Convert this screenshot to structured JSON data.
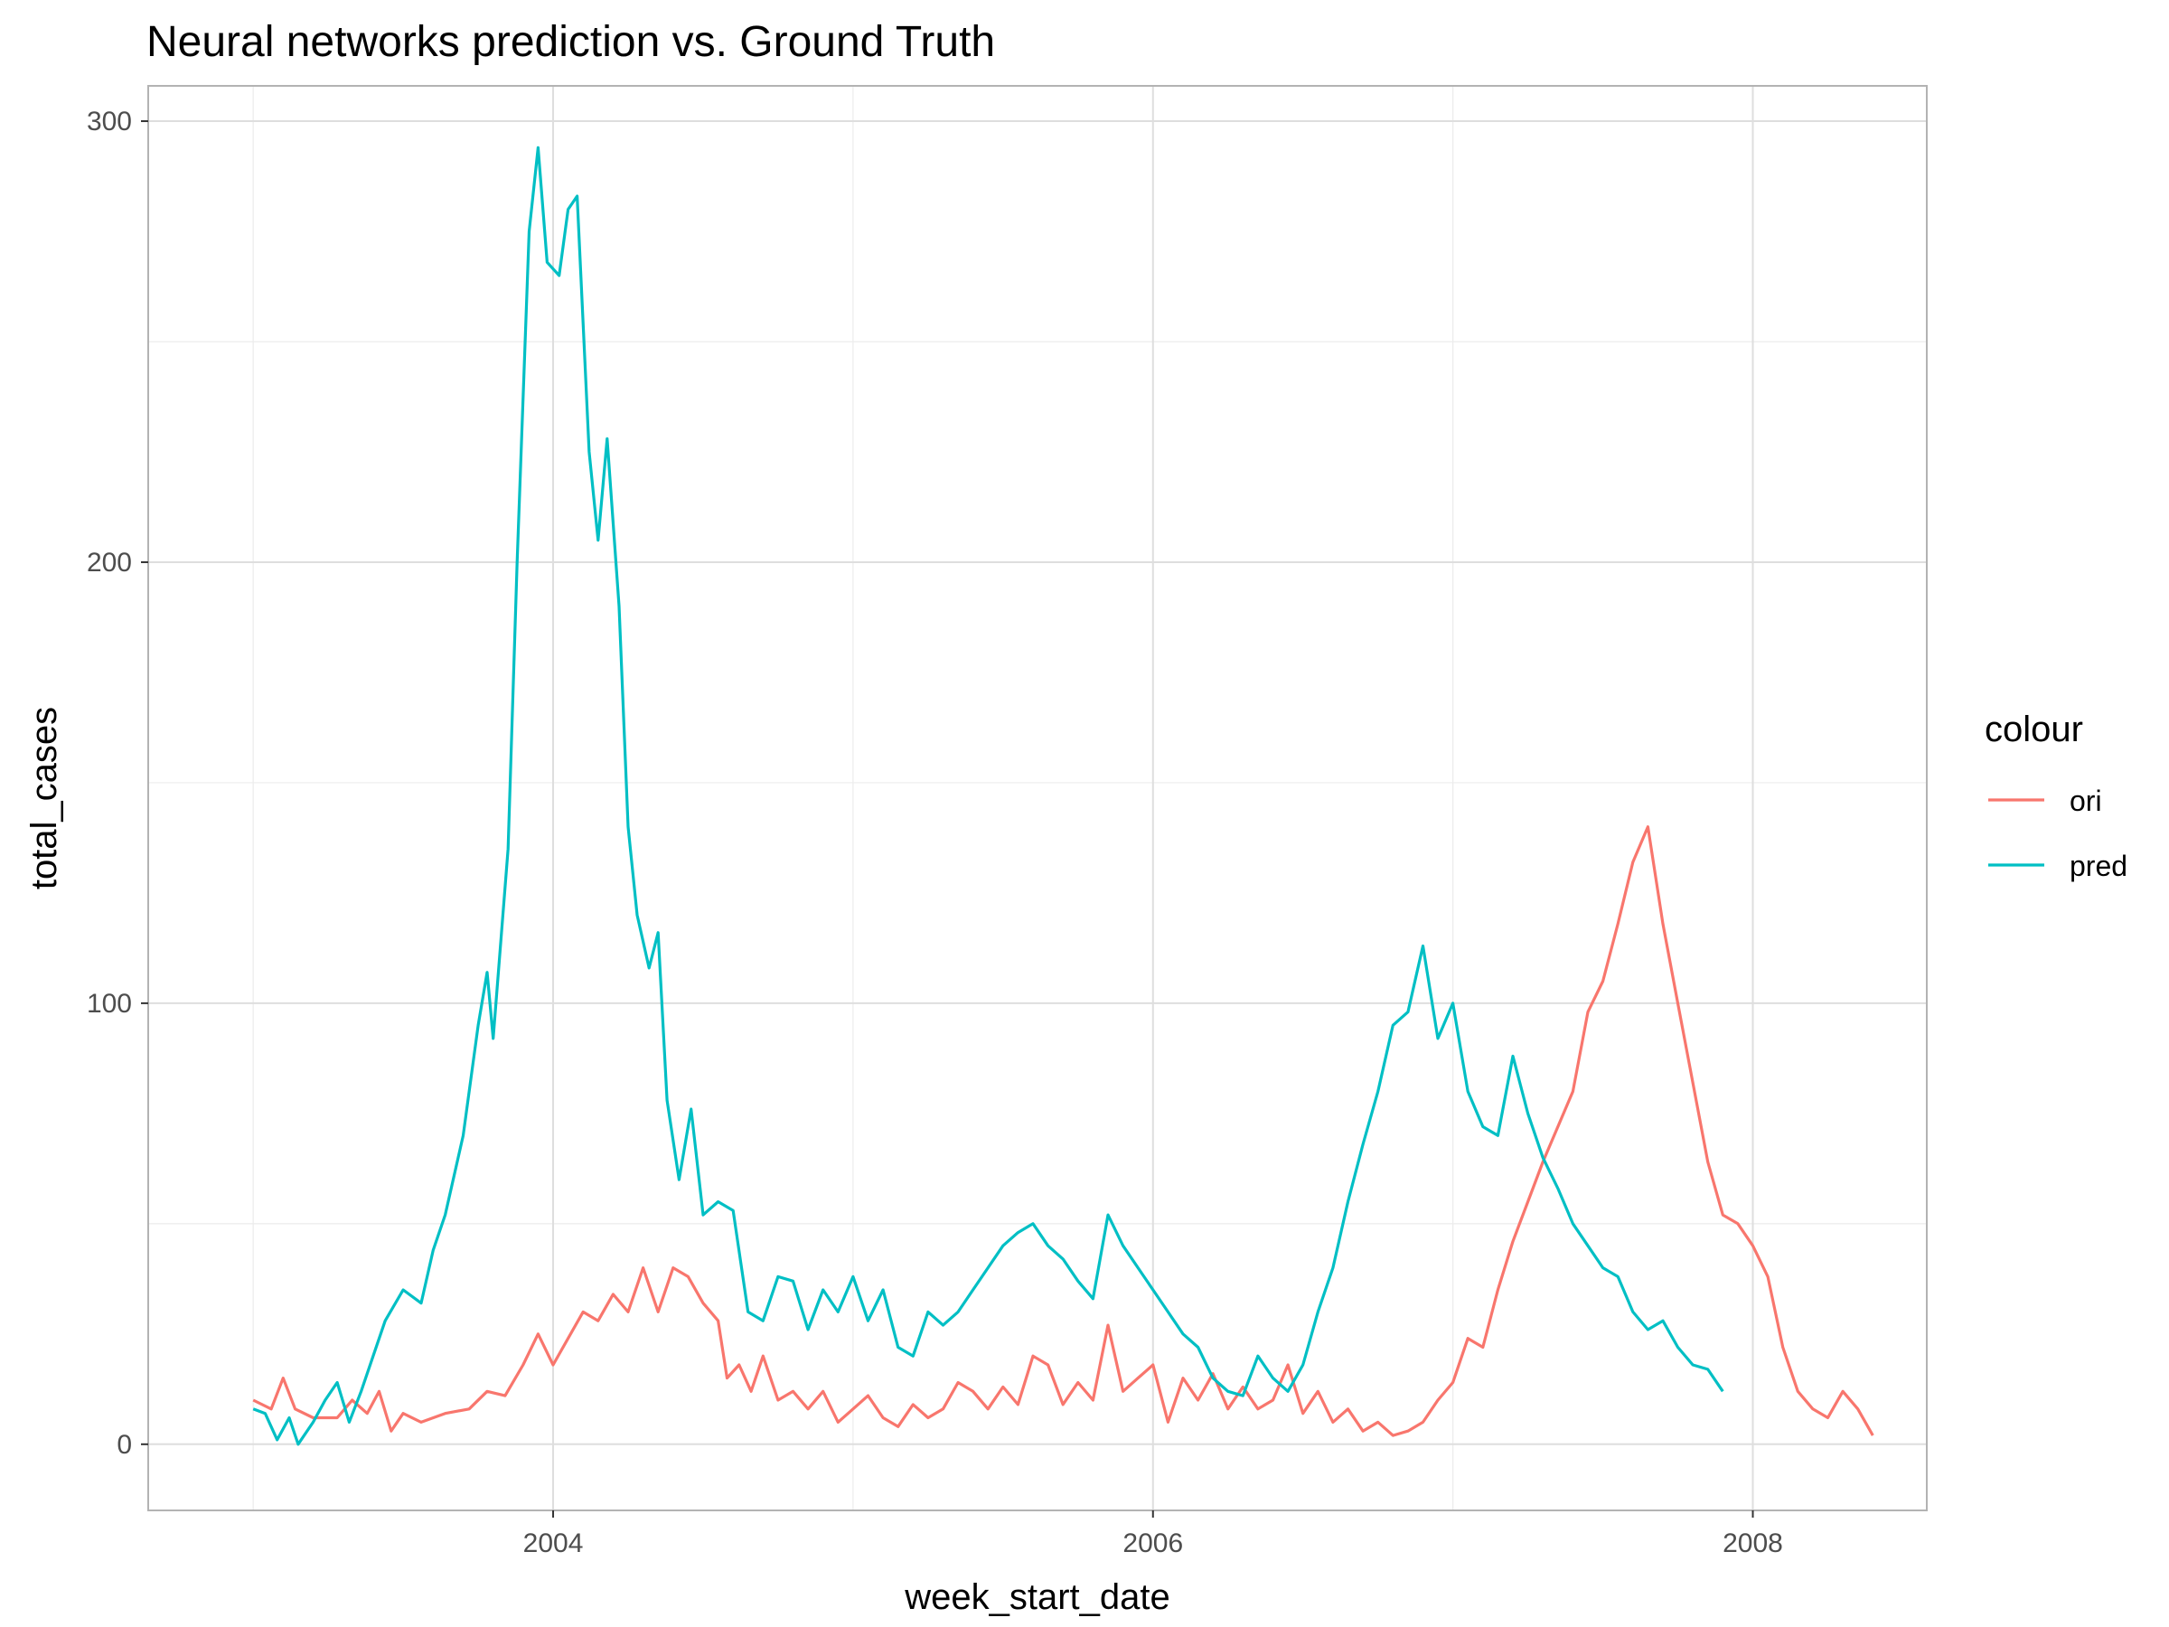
{
  "chart_data": {
    "type": "line",
    "title": "Neural networks prediction vs. Ground Truth",
    "xlabel": "week_start_date",
    "ylabel": "total_cases",
    "x_ticks": [
      "2004",
      "2006",
      "2008"
    ],
    "y_ticks": [
      "0",
      "100",
      "200",
      "300"
    ],
    "xlim": [
      2002.65,
      2008.58
    ],
    "ylim": [
      -15,
      308
    ],
    "grid": true,
    "legend": {
      "title": "colour",
      "position": "right"
    },
    "series": [
      {
        "name": "ori",
        "color": "#F8766D",
        "points": [
          [
            2003.0,
            10
          ],
          [
            2003.06,
            8
          ],
          [
            2003.1,
            15
          ],
          [
            2003.14,
            8
          ],
          [
            2003.2,
            6
          ],
          [
            2003.28,
            6
          ],
          [
            2003.33,
            10
          ],
          [
            2003.38,
            7
          ],
          [
            2003.42,
            12
          ],
          [
            2003.46,
            3
          ],
          [
            2003.5,
            7
          ],
          [
            2003.56,
            5
          ],
          [
            2003.64,
            7
          ],
          [
            2003.72,
            8
          ],
          [
            2003.78,
            12
          ],
          [
            2003.84,
            11
          ],
          [
            2003.9,
            18
          ],
          [
            2003.95,
            25
          ],
          [
            2004.0,
            18
          ],
          [
            2004.05,
            24
          ],
          [
            2004.1,
            30
          ],
          [
            2004.15,
            28
          ],
          [
            2004.2,
            34
          ],
          [
            2004.25,
            30
          ],
          [
            2004.3,
            40
          ],
          [
            2004.35,
            30
          ],
          [
            2004.4,
            40
          ],
          [
            2004.45,
            38
          ],
          [
            2004.5,
            32
          ],
          [
            2004.55,
            28
          ],
          [
            2004.58,
            15
          ],
          [
            2004.62,
            18
          ],
          [
            2004.66,
            12
          ],
          [
            2004.7,
            20
          ],
          [
            2004.75,
            10
          ],
          [
            2004.8,
            12
          ],
          [
            2004.85,
            8
          ],
          [
            2004.9,
            12
          ],
          [
            2004.95,
            5
          ],
          [
            2005.0,
            8
          ],
          [
            2005.05,
            11
          ],
          [
            2005.1,
            6
          ],
          [
            2005.15,
            4
          ],
          [
            2005.2,
            9
          ],
          [
            2005.25,
            6
          ],
          [
            2005.3,
            8
          ],
          [
            2005.35,
            14
          ],
          [
            2005.4,
            12
          ],
          [
            2005.45,
            8
          ],
          [
            2005.5,
            13
          ],
          [
            2005.55,
            9
          ],
          [
            2005.6,
            20
          ],
          [
            2005.65,
            18
          ],
          [
            2005.7,
            9
          ],
          [
            2005.75,
            14
          ],
          [
            2005.8,
            10
          ],
          [
            2005.85,
            27
          ],
          [
            2005.9,
            12
          ],
          [
            2005.95,
            15
          ],
          [
            2006.0,
            18
          ],
          [
            2006.05,
            5
          ],
          [
            2006.1,
            15
          ],
          [
            2006.15,
            10
          ],
          [
            2006.2,
            16
          ],
          [
            2006.25,
            8
          ],
          [
            2006.3,
            13
          ],
          [
            2006.35,
            8
          ],
          [
            2006.4,
            10
          ],
          [
            2006.45,
            18
          ],
          [
            2006.5,
            7
          ],
          [
            2006.55,
            12
          ],
          [
            2006.6,
            5
          ],
          [
            2006.65,
            8
          ],
          [
            2006.7,
            3
          ],
          [
            2006.75,
            5
          ],
          [
            2006.8,
            2
          ],
          [
            2006.85,
            3
          ],
          [
            2006.9,
            5
          ],
          [
            2006.95,
            10
          ],
          [
            2007.0,
            14
          ],
          [
            2007.05,
            24
          ],
          [
            2007.1,
            22
          ],
          [
            2007.15,
            35
          ],
          [
            2007.2,
            46
          ],
          [
            2007.25,
            55
          ],
          [
            2007.3,
            64
          ],
          [
            2007.35,
            72
          ],
          [
            2007.4,
            80
          ],
          [
            2007.45,
            98
          ],
          [
            2007.5,
            105
          ],
          [
            2007.55,
            118
          ],
          [
            2007.6,
            132
          ],
          [
            2007.65,
            140
          ],
          [
            2007.7,
            118
          ],
          [
            2007.75,
            100
          ],
          [
            2007.8,
            82
          ],
          [
            2007.85,
            64
          ],
          [
            2007.9,
            52
          ],
          [
            2007.95,
            50
          ],
          [
            2008.0,
            45
          ],
          [
            2008.05,
            38
          ],
          [
            2008.1,
            22
          ],
          [
            2008.15,
            12
          ],
          [
            2008.2,
            8
          ],
          [
            2008.25,
            6
          ],
          [
            2008.3,
            12
          ],
          [
            2008.35,
            8
          ],
          [
            2008.4,
            2
          ]
        ]
      },
      {
        "name": "pred",
        "color": "#00BFC4",
        "points": [
          [
            2003.0,
            8
          ],
          [
            2003.04,
            7
          ],
          [
            2003.08,
            1
          ],
          [
            2003.12,
            6
          ],
          [
            2003.15,
            0
          ],
          [
            2003.2,
            5
          ],
          [
            2003.24,
            10
          ],
          [
            2003.28,
            14
          ],
          [
            2003.32,
            5
          ],
          [
            2003.36,
            12
          ],
          [
            2003.4,
            20
          ],
          [
            2003.44,
            28
          ],
          [
            2003.5,
            35
          ],
          [
            2003.56,
            32
          ],
          [
            2003.6,
            44
          ],
          [
            2003.64,
            52
          ],
          [
            2003.7,
            70
          ],
          [
            2003.75,
            95
          ],
          [
            2003.78,
            107
          ],
          [
            2003.8,
            92
          ],
          [
            2003.85,
            135
          ],
          [
            2003.88,
            200
          ],
          [
            2003.92,
            275
          ],
          [
            2003.95,
            294
          ],
          [
            2003.98,
            268
          ],
          [
            2004.02,
            265
          ],
          [
            2004.05,
            280
          ],
          [
            2004.08,
            283
          ],
          [
            2004.12,
            225
          ],
          [
            2004.15,
            205
          ],
          [
            2004.18,
            228
          ],
          [
            2004.22,
            190
          ],
          [
            2004.25,
            140
          ],
          [
            2004.28,
            120
          ],
          [
            2004.32,
            108
          ],
          [
            2004.35,
            116
          ],
          [
            2004.38,
            78
          ],
          [
            2004.42,
            60
          ],
          [
            2004.46,
            76
          ],
          [
            2004.5,
            52
          ],
          [
            2004.55,
            55
          ],
          [
            2004.6,
            53
          ],
          [
            2004.65,
            30
          ],
          [
            2004.7,
            28
          ],
          [
            2004.75,
            38
          ],
          [
            2004.8,
            37
          ],
          [
            2004.85,
            26
          ],
          [
            2004.9,
            35
          ],
          [
            2004.95,
            30
          ],
          [
            2005.0,
            38
          ],
          [
            2005.05,
            28
          ],
          [
            2005.1,
            35
          ],
          [
            2005.15,
            22
          ],
          [
            2005.2,
            20
          ],
          [
            2005.25,
            30
          ],
          [
            2005.3,
            27
          ],
          [
            2005.35,
            30
          ],
          [
            2005.4,
            35
          ],
          [
            2005.45,
            40
          ],
          [
            2005.5,
            45
          ],
          [
            2005.55,
            48
          ],
          [
            2005.6,
            50
          ],
          [
            2005.65,
            45
          ],
          [
            2005.7,
            42
          ],
          [
            2005.75,
            37
          ],
          [
            2005.8,
            33
          ],
          [
            2005.85,
            52
          ],
          [
            2005.9,
            45
          ],
          [
            2005.95,
            40
          ],
          [
            2006.0,
            35
          ],
          [
            2006.05,
            30
          ],
          [
            2006.1,
            25
          ],
          [
            2006.15,
            22
          ],
          [
            2006.2,
            15
          ],
          [
            2006.25,
            12
          ],
          [
            2006.3,
            11
          ],
          [
            2006.35,
            20
          ],
          [
            2006.4,
            15
          ],
          [
            2006.45,
            12
          ],
          [
            2006.5,
            18
          ],
          [
            2006.55,
            30
          ],
          [
            2006.6,
            40
          ],
          [
            2006.65,
            55
          ],
          [
            2006.7,
            68
          ],
          [
            2006.75,
            80
          ],
          [
            2006.8,
            95
          ],
          [
            2006.85,
            98
          ],
          [
            2006.9,
            113
          ],
          [
            2006.95,
            92
          ],
          [
            2007.0,
            100
          ],
          [
            2007.05,
            80
          ],
          [
            2007.1,
            72
          ],
          [
            2007.15,
            70
          ],
          [
            2007.2,
            88
          ],
          [
            2007.25,
            75
          ],
          [
            2007.3,
            65
          ],
          [
            2007.35,
            58
          ],
          [
            2007.4,
            50
          ],
          [
            2007.45,
            45
          ],
          [
            2007.5,
            40
          ],
          [
            2007.55,
            38
          ],
          [
            2007.6,
            30
          ],
          [
            2007.65,
            26
          ],
          [
            2007.7,
            28
          ],
          [
            2007.75,
            22
          ],
          [
            2007.8,
            18
          ],
          [
            2007.85,
            17
          ],
          [
            2007.9,
            12
          ]
        ]
      }
    ]
  }
}
